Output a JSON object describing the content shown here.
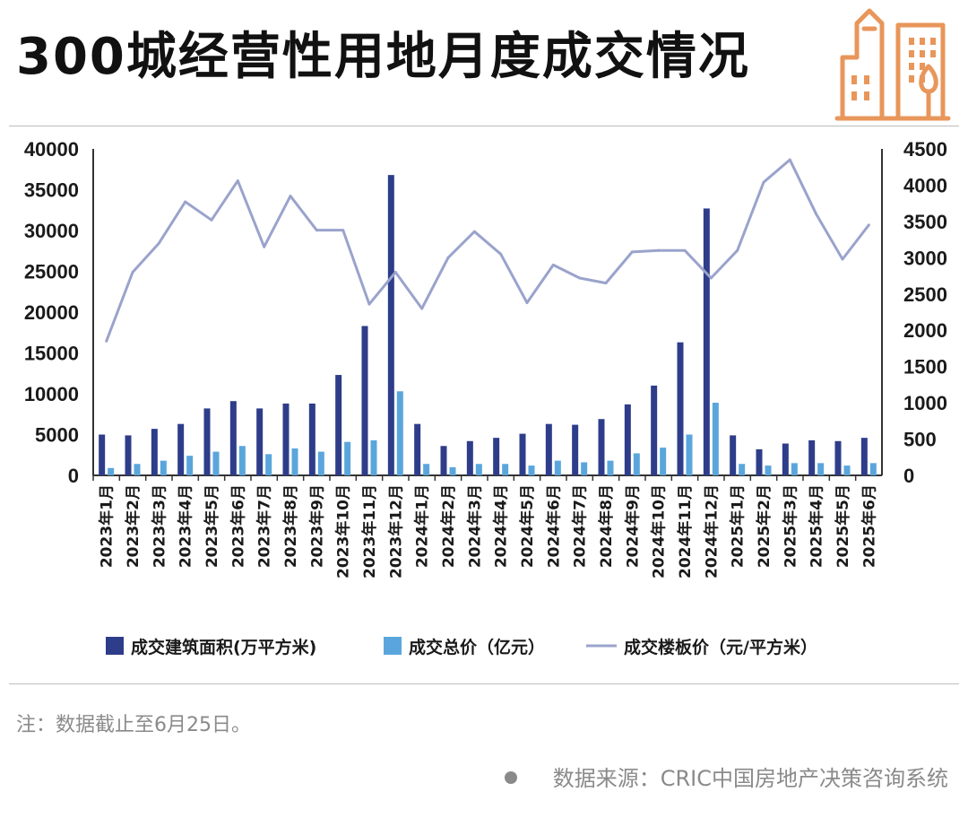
{
  "title": "300城经营性用地月度成交情况",
  "logo_icon": "city-buildings-icon",
  "note": "注：数据截止至6月25日。",
  "source": "数据来源：CRIC中国房地产决策咨询系统",
  "colors": {
    "area": "#2e3d8a",
    "total": "#5aa6dc",
    "price": "#9aa3cc",
    "logo": "#e8965a"
  },
  "chart_data": {
    "type": "bar+line",
    "categories": [
      "2023年1月",
      "2023年2月",
      "2023年3月",
      "2023年4月",
      "2023年5月",
      "2023年6月",
      "2023年7月",
      "2023年8月",
      "2023年9月",
      "2023年10月",
      "2023年11月",
      "2023年12月",
      "2024年1月",
      "2024年2月",
      "2024年3月",
      "2024年4月",
      "2024年5月",
      "2024年6月",
      "2024年7月",
      "2024年8月",
      "2024年9月",
      "2024年10月",
      "2024年11月",
      "2024年12月",
      "2025年1月",
      "2025年2月",
      "2025年3月",
      "2025年4月",
      "2025年5月",
      "2025年6月"
    ],
    "series": [
      {
        "name": "成交建筑面积(万平方米)",
        "type": "bar",
        "axis": "left",
        "values": [
          5000,
          4900,
          5700,
          6300,
          8200,
          9100,
          8200,
          8800,
          8800,
          12300,
          18300,
          36800,
          6300,
          3600,
          4200,
          4600,
          5100,
          6300,
          6200,
          6900,
          8700,
          11000,
          16300,
          32700,
          4900,
          3200,
          3900,
          4300,
          4200,
          4600
        ]
      },
      {
        "name": "成交总价（亿元）",
        "type": "bar",
        "axis": "left",
        "values": [
          900,
          1400,
          1800,
          2400,
          2900,
          3600,
          2600,
          3300,
          2900,
          4100,
          4300,
          10300,
          1400,
          1000,
          1400,
          1400,
          1200,
          1800,
          1600,
          1800,
          2700,
          3400,
          5000,
          8900,
          1400,
          1200,
          1500,
          1500,
          1200,
          1500
        ]
      },
      {
        "name": "成交楼板价（元/平方米）",
        "type": "line",
        "axis": "right",
        "values": [
          1850,
          2800,
          3200,
          3770,
          3520,
          4060,
          3150,
          3850,
          3380,
          3380,
          2360,
          2800,
          2300,
          3000,
          3360,
          3050,
          2380,
          2900,
          2720,
          2650,
          3080,
          3100,
          3100,
          2720,
          3100,
          4040,
          4350,
          3600,
          2980,
          3450
        ]
      }
    ],
    "left_axis": {
      "min": 0,
      "max": 40000,
      "ticks": [
        0,
        5000,
        10000,
        15000,
        20000,
        25000,
        30000,
        35000,
        40000
      ]
    },
    "right_axis": {
      "min": 0,
      "max": 4500,
      "ticks": [
        0,
        500,
        1000,
        1500,
        2000,
        2500,
        3000,
        3500,
        4000,
        4500
      ]
    },
    "legend_position": "bottom"
  }
}
